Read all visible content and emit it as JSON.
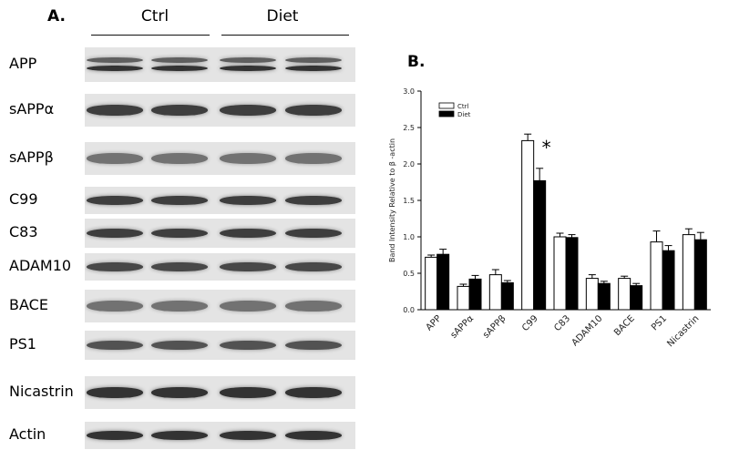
{
  "panel_a": {
    "label": "A.",
    "groups": [
      "Ctrl",
      "Diet"
    ],
    "rows": [
      {
        "label": "APP",
        "intensity": 0.85
      },
      {
        "label": "sAPPα",
        "intensity": 0.8
      },
      {
        "label": "sAPPβ",
        "intensity": 0.55
      },
      {
        "label": "C99",
        "intensity": 0.8
      },
      {
        "label": "C83",
        "intensity": 0.8
      },
      {
        "label": "ADAM10",
        "intensity": 0.75
      },
      {
        "label": "BACE",
        "intensity": 0.55
      },
      {
        "label": "PS1",
        "intensity": 0.7
      },
      {
        "label": "Nicastrin",
        "intensity": 0.85
      },
      {
        "label": "Actin",
        "intensity": 0.85
      }
    ]
  },
  "panel_b": {
    "label": "B."
  },
  "chart_data": {
    "type": "bar",
    "title": "",
    "xlabel": "",
    "ylabel": "Band Intensity Relative to β -actin",
    "ylim": [
      0,
      3.0
    ],
    "yticks": [
      "0.0",
      "0.5",
      "1.0",
      "1.5",
      "2.0",
      "2.5",
      "3.0"
    ],
    "categories": [
      "APP",
      "sAPPα",
      "sAPPβ",
      "C99",
      "C83",
      "ADAM10",
      "BACE",
      "PS1",
      "Nicastrin"
    ],
    "series": [
      {
        "name": "Ctrl",
        "color": "#ffffff",
        "values": [
          0.72,
          0.32,
          0.48,
          2.32,
          1.0,
          0.43,
          0.43,
          0.93,
          1.03
        ],
        "errors": [
          0.03,
          0.03,
          0.07,
          0.09,
          0.05,
          0.05,
          0.03,
          0.15,
          0.08
        ]
      },
      {
        "name": "Diet",
        "color": "#000000",
        "values": [
          0.76,
          0.42,
          0.37,
          1.77,
          0.99,
          0.36,
          0.33,
          0.81,
          0.96
        ],
        "errors": [
          0.07,
          0.05,
          0.03,
          0.17,
          0.04,
          0.03,
          0.03,
          0.07,
          0.1
        ]
      }
    ],
    "annotations": [
      {
        "category": "C99",
        "text": "*"
      }
    ],
    "legend": "top-left",
    "grid": false
  }
}
